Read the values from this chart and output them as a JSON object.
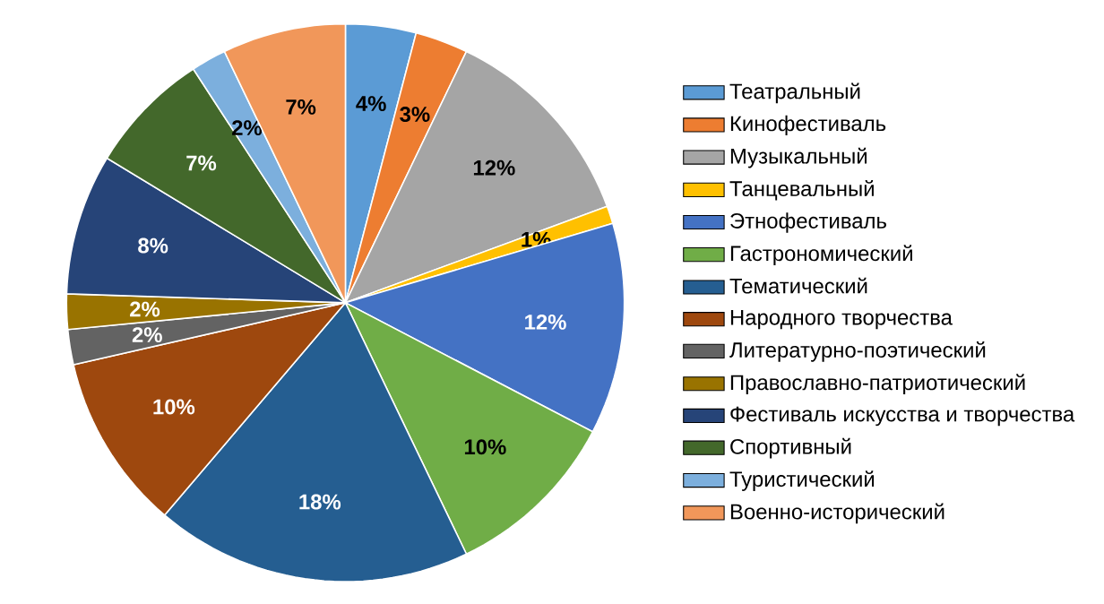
{
  "chart_data": {
    "type": "pie",
    "categories": [
      "Театральный",
      "Кинофестиваль",
      "Музыкальный",
      "Танцевальный",
      "Этнофестиваль",
      "Гастрономический",
      "Тематический",
      "Народного творчества",
      "Литературно-поэтический",
      "Православно-патриотический",
      "Фестиваль искусства и творчества",
      "Спортивный",
      "Туристический",
      "Военно-исторический"
    ],
    "values": [
      4,
      3,
      12,
      1,
      12,
      10,
      18,
      10,
      2,
      2,
      8,
      7,
      2,
      7
    ],
    "value_labels": [
      "4%",
      "3%",
      "12%",
      "1%",
      "12%",
      "10%",
      "18%",
      "10%",
      "2%",
      "2%",
      "8%",
      "7%",
      "2%",
      "7%"
    ],
    "colors": [
      "#5b9bd5",
      "#ed7d31",
      "#a5a5a5",
      "#ffc000",
      "#4472c4",
      "#70ad47",
      "#255e91",
      "#9e480e",
      "#636363",
      "#997300",
      "#264478",
      "#43682b",
      "#7cafdd",
      "#f1975a"
    ],
    "legend": "right"
  }
}
